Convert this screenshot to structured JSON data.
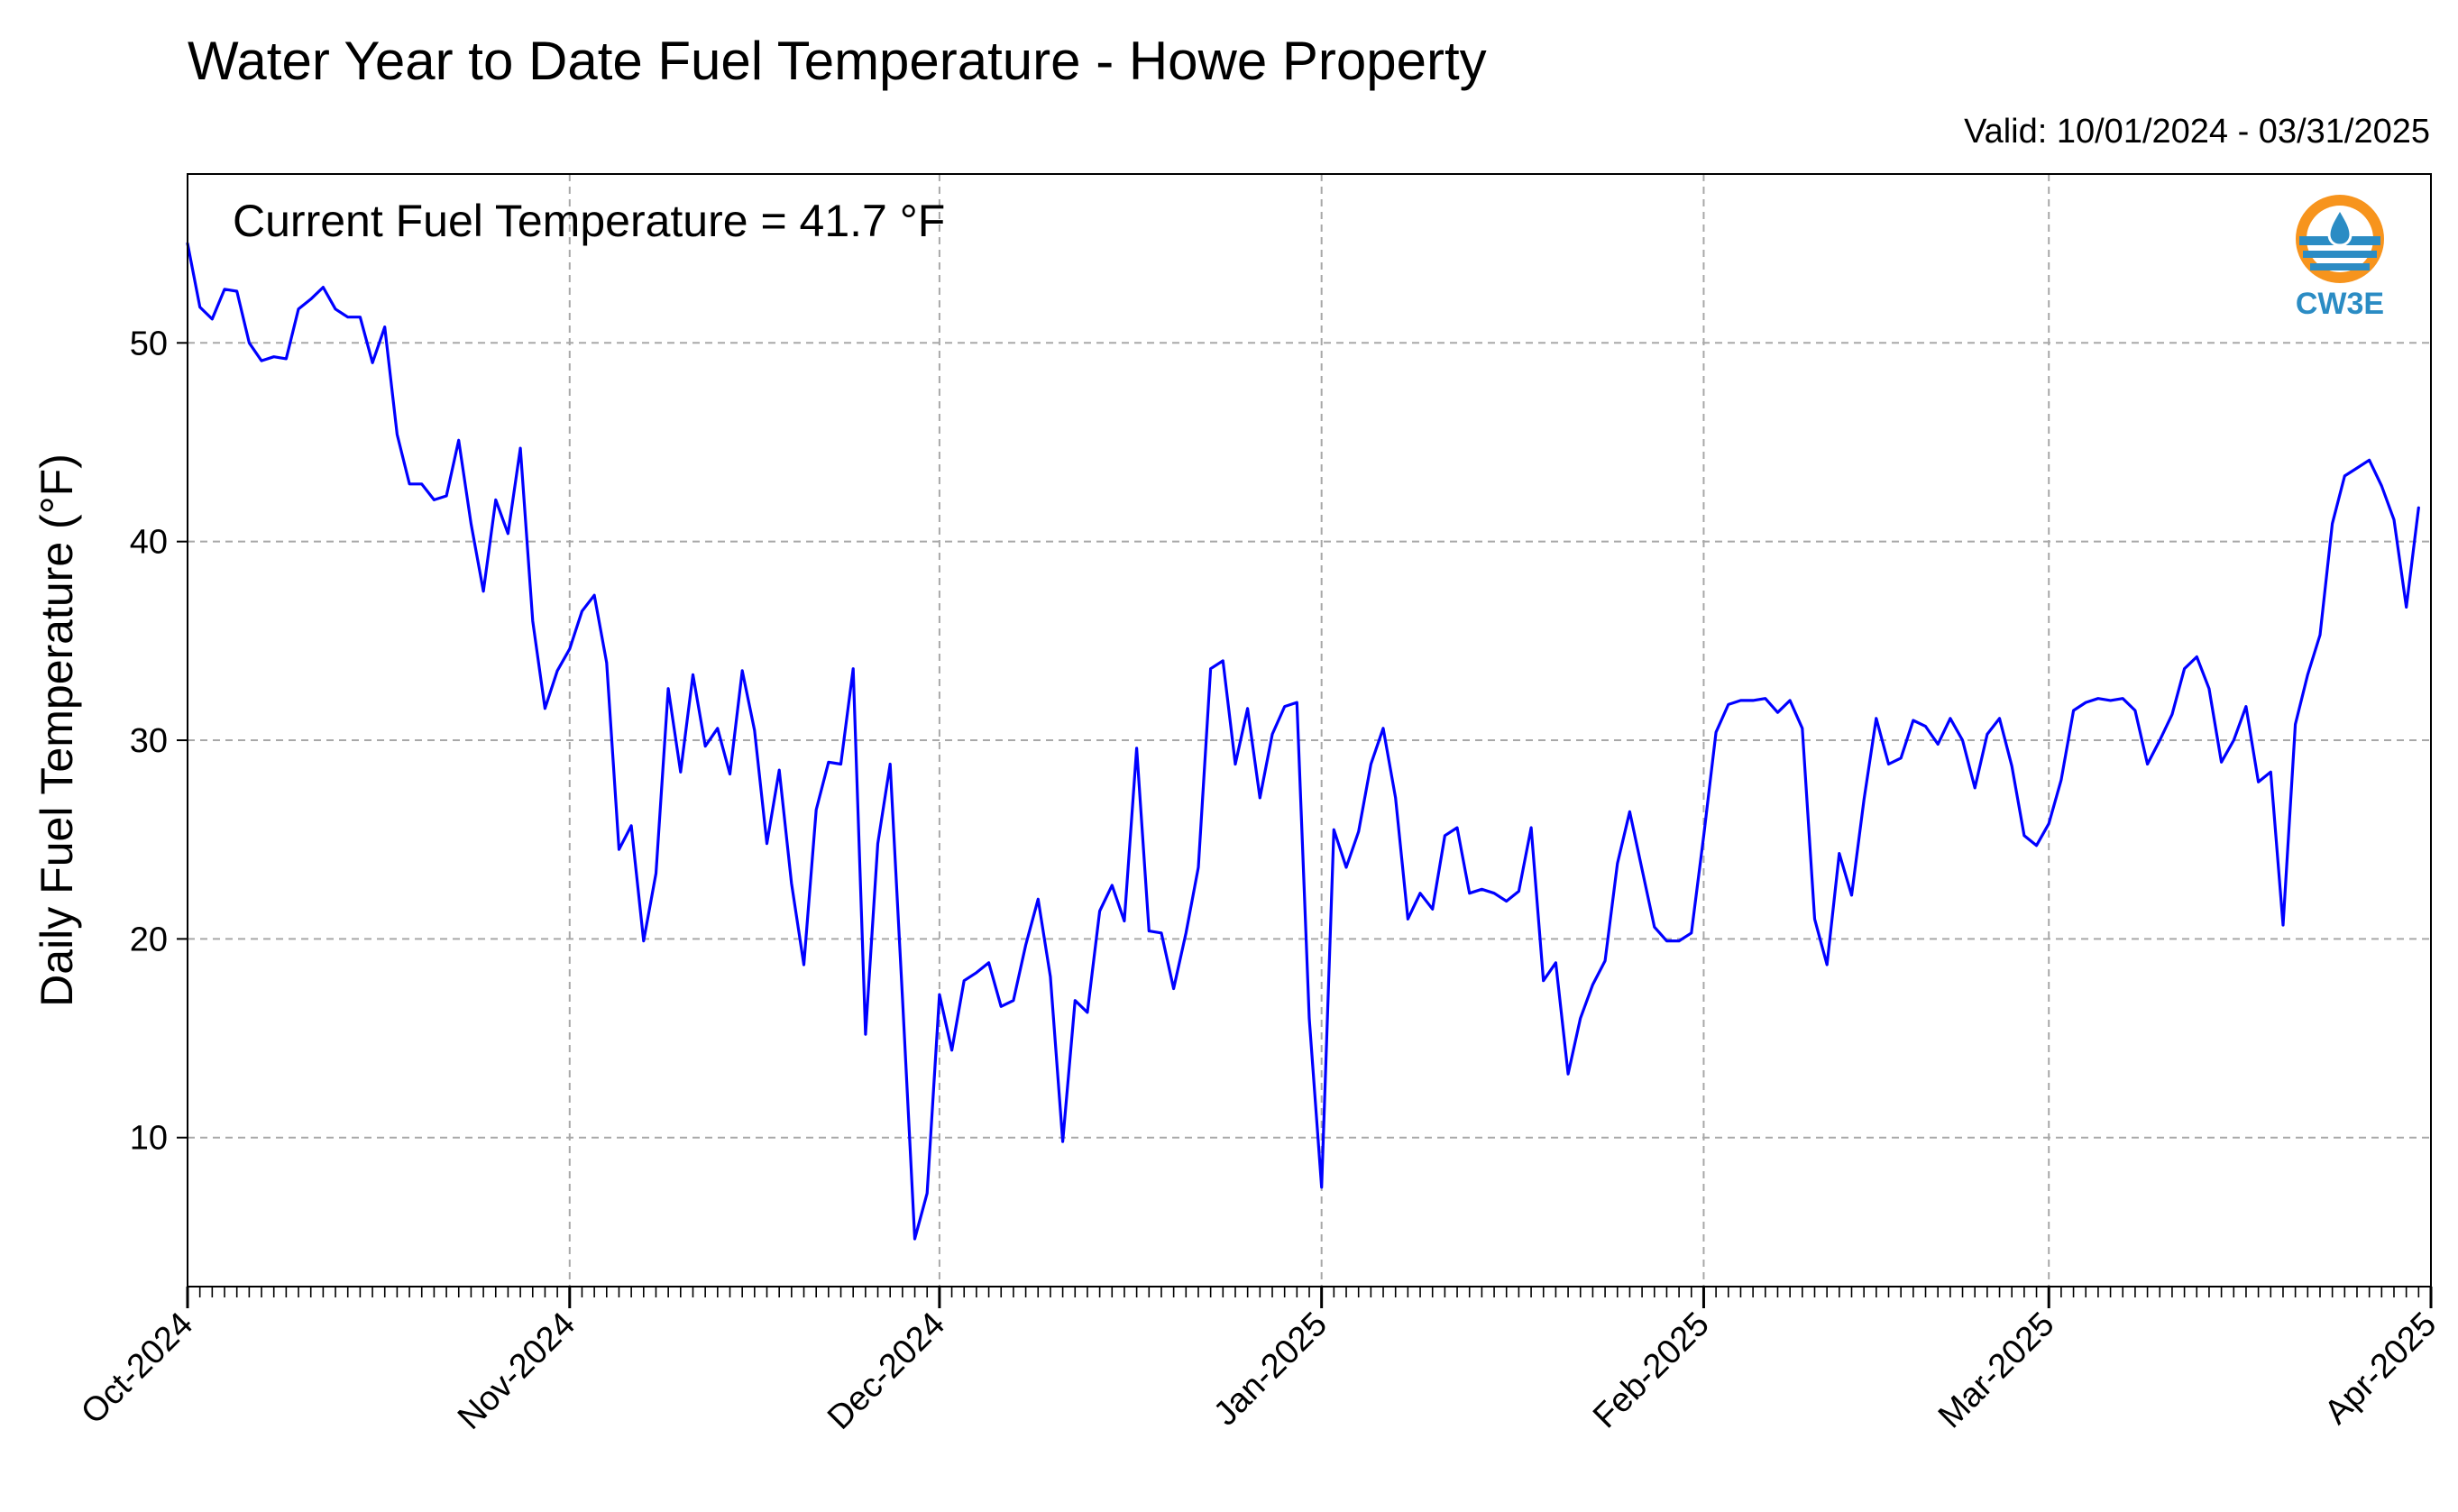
{
  "header": {
    "title": "Water Year to Date Fuel Temperature - Howe Property",
    "valid": "Valid: 10/01/2024 - 03/31/2025"
  },
  "annotation": "Current Fuel Temperature = 41.7 °F",
  "logo": {
    "text": "CW3E",
    "icon": "cw3e-water-drop-logo",
    "colors": {
      "orange": "#f7941d",
      "blue": "#2b8cc4"
    }
  },
  "colors": {
    "line": "#0000ff",
    "grid": "#a8a8a8",
    "axis": "#000000"
  },
  "chart_data": {
    "type": "line",
    "title": "Water Year to Date Fuel Temperature - Howe Property",
    "xlabel": "",
    "ylabel": "Daily Fuel Temperature (°F)",
    "x_start": "2024-10-01",
    "x_end": "2025-03-31",
    "xlim": [
      "2024-10-01",
      "2025-04-01"
    ],
    "ylim": [
      2.5,
      58.5
    ],
    "yticks": [
      10,
      20,
      30,
      40,
      50
    ],
    "xticks": [
      {
        "date": "2024-10-01",
        "label": "Oct-2024"
      },
      {
        "date": "2024-11-01",
        "label": "Nov-2024"
      },
      {
        "date": "2024-12-01",
        "label": "Dec-2024"
      },
      {
        "date": "2025-01-01",
        "label": "Jan-2025"
      },
      {
        "date": "2025-02-01",
        "label": "Feb-2025"
      },
      {
        "date": "2025-03-01",
        "label": "Mar-2025"
      },
      {
        "date": "2025-04-01",
        "label": "Apr-2025"
      }
    ],
    "grid": true,
    "values": [
      55.0,
      51.8,
      51.2,
      52.7,
      52.6,
      50.0,
      49.1,
      49.3,
      49.2,
      51.7,
      52.2,
      52.8,
      51.7,
      51.3,
      51.3,
      49.0,
      50.8,
      45.4,
      42.9,
      42.9,
      42.1,
      42.3,
      45.1,
      40.9,
      37.5,
      42.1,
      40.4,
      44.7,
      36.0,
      31.6,
      33.5,
      34.6,
      36.5,
      37.3,
      33.9,
      24.5,
      25.7,
      19.9,
      23.3,
      32.6,
      28.4,
      33.3,
      29.7,
      30.6,
      28.3,
      33.5,
      30.5,
      24.8,
      28.5,
      22.8,
      18.7,
      26.5,
      28.9,
      28.8,
      33.6,
      15.2,
      24.8,
      28.8,
      17.0,
      4.9,
      7.2,
      17.2,
      14.4,
      17.9,
      18.3,
      18.8,
      16.6,
      16.9,
      19.7,
      22.0,
      18.1,
      9.8,
      16.9,
      16.3,
      21.4,
      22.7,
      20.9,
      29.6,
      20.4,
      20.3,
      17.5,
      20.3,
      23.6,
      33.6,
      34.0,
      28.8,
      31.6,
      27.1,
      30.3,
      31.7,
      31.9,
      16.0,
      7.5,
      25.5,
      23.6,
      25.4,
      28.8,
      30.6,
      27.1,
      21.0,
      22.3,
      21.5,
      25.2,
      25.6,
      22.3,
      22.5,
      22.3,
      21.9,
      22.4,
      25.6,
      17.9,
      18.8,
      13.2,
      16.0,
      17.7,
      18.9,
      23.8,
      26.4,
      23.5,
      20.6,
      19.9,
      19.9,
      20.3,
      25.2,
      30.4,
      31.8,
      32.0,
      32.0,
      32.1,
      31.4,
      32.0,
      30.6,
      21.0,
      18.7,
      24.3,
      22.2,
      27.0,
      31.1,
      28.8,
      29.1,
      31.0,
      30.7,
      29.8,
      31.1,
      30.0,
      27.6,
      30.3,
      31.1,
      28.7,
      25.2,
      24.7,
      25.8,
      28.0,
      31.5,
      31.9,
      32.1,
      32.0,
      32.1,
      31.5,
      28.8,
      30.0,
      31.3,
      33.6,
      34.2,
      32.6,
      28.9,
      30.0,
      31.7,
      27.9,
      28.4,
      20.7,
      30.8,
      33.3,
      35.3,
      40.9,
      43.3,
      43.7,
      44.1,
      42.8,
      41.1,
      36.7,
      41.7
    ]
  }
}
